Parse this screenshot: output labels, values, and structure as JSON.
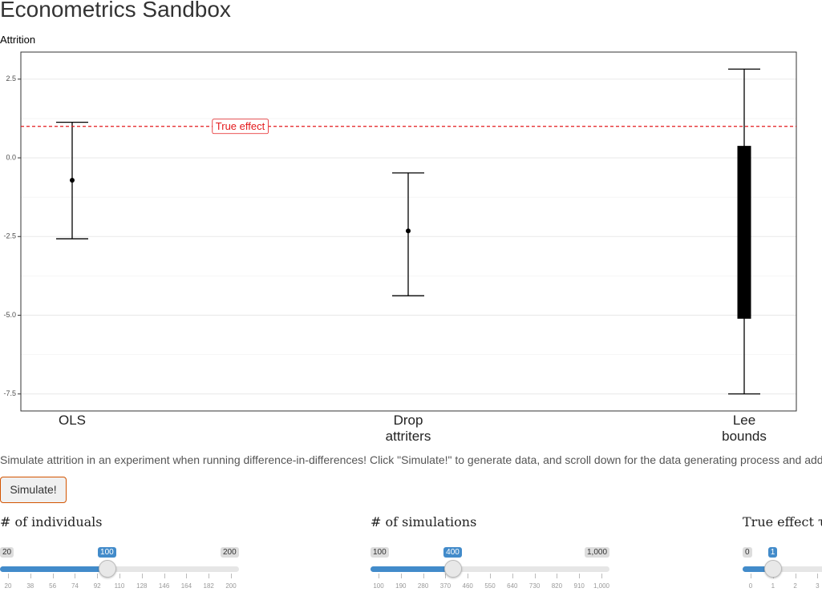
{
  "header": {
    "title": "Econometrics Sandbox"
  },
  "chart_data": {
    "type": "errorbar",
    "title": "Attrition",
    "categories": [
      "OLS",
      "Drop attriters",
      "Lee bounds"
    ],
    "estimates": [
      -0.71,
      -2.32,
      null
    ],
    "ci_low": [
      -2.57,
      -4.38,
      -7.5
    ],
    "ci_high": [
      1.13,
      -0.48,
      2.82
    ],
    "bounds_low": [
      null,
      null,
      -5.11
    ],
    "bounds_high": [
      null,
      null,
      0.38
    ],
    "reference_line": {
      "value": 1,
      "label": "True effect",
      "color": "#e41a1c"
    },
    "ylim": [
      -8.04,
      3.36
    ],
    "yticks": [
      -7.5,
      {
        "value": -5,
        "label": "-5.0"
      },
      -2.5,
      {
        "value": 0,
        "label": "0.0"
      },
      2.5
    ],
    "grid": true,
    "color": "#000000"
  },
  "description": "Simulate attrition in an experiment when running difference-in-differences! Click \"Simulate!\" to generate data, and scroll down for the data generating process and add",
  "button": {
    "label": "Simulate!"
  },
  "sliders": [
    {
      "label": "# of individuals",
      "min": 20,
      "max": 200,
      "value": 100,
      "ticks": [
        20,
        38,
        56,
        74,
        92,
        110,
        128,
        146,
        164,
        182,
        200
      ]
    },
    {
      "label": "# of simulations",
      "min": 100,
      "max": {
        "value": 1000,
        "label": "1,000"
      },
      "value": 400,
      "ticks": [
        100,
        190,
        280,
        370,
        460,
        550,
        640,
        730,
        820,
        910,
        {
          "value": 1000,
          "label": "1,000"
        }
      ]
    },
    {
      "label": "True effect τ",
      "min": 0,
      "value": 1,
      "ticks": [
        0,
        1,
        2,
        3
      ]
    }
  ]
}
